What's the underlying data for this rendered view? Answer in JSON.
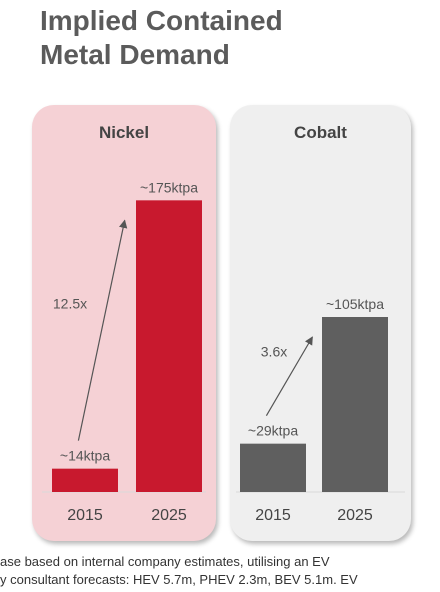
{
  "title_lines": [
    "Implied Contained",
    "Metal Demand"
  ],
  "colors": {
    "nickel_bar": "#c8192e",
    "nickel_panel": "#f5d1d5",
    "cobalt_bar": "#5f5f5f",
    "cobalt_panel": "#efefef",
    "arrow": "#555555"
  },
  "chart_data": [
    {
      "type": "bar",
      "title": "Nickel",
      "categories": [
        "2015",
        "2025"
      ],
      "values": [
        14,
        175
      ],
      "value_labels": [
        "~14ktpa",
        "~175ktpa"
      ],
      "annotation": "12.5x",
      "ylim": [
        0,
        195
      ]
    },
    {
      "type": "bar",
      "title": "Cobalt",
      "categories": [
        "2015",
        "2025"
      ],
      "values": [
        29,
        105
      ],
      "value_labels": [
        "~29ktpa",
        "~105ktpa"
      ],
      "annotation": "3.6x",
      "ylim": [
        0,
        195
      ]
    }
  ],
  "footnote_lines": [
    "ase based on internal company estimates, utilising an EV",
    "y consultant forecasts: HEV 5.7m, PHEV 2.3m, BEV 5.1m.  EV"
  ]
}
